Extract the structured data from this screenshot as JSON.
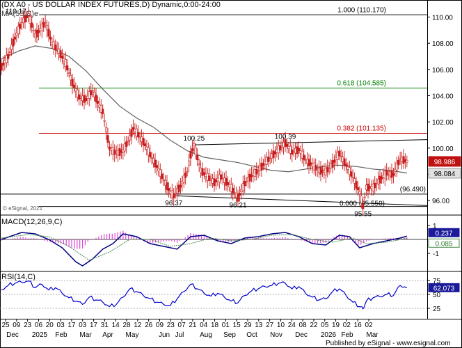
{
  "header": {
    "title": "(DX A0 - US DOLLAR INDEX FUTURES,D) Dynamic,0:00-24:00",
    "ma_label": "MA(55,C)e",
    "watermark": "© eSignal, 2021"
  },
  "credit": "Published by eSignal - www.esignal.com",
  "chart_data": [
    {
      "type": "line",
      "panel": "price",
      "y_ticks": [
        "110.00",
        "108.00",
        "106.00",
        "104.00",
        "102.00",
        "100.00",
        "98.00",
        "96.00"
      ],
      "ylim": [
        95.0,
        111.3
      ],
      "grid": false,
      "colors": {
        "candles": "#c81a1a",
        "ma": "#606060",
        "fib_100": "#000000",
        "fib_618": "#008000",
        "fib_382": "#cc0000",
        "price_tag_last": "#c01010",
        "price_tag_ma": "#e0e0e0"
      },
      "series": [
        {
          "name": "MA(55,C)e",
          "type": "line",
          "values": [
            [
              0,
              106.8
            ],
            [
              5,
              107.4
            ],
            [
              10,
              107.8
            ],
            [
              15,
              107.6
            ],
            [
              20,
              107.0
            ],
            [
              25,
              105.9
            ],
            [
              30,
              104.5
            ],
            [
              35,
              103.2
            ],
            [
              40,
              102.3
            ],
            [
              45,
              101.6
            ],
            [
              50,
              100.6
            ],
            [
              55,
              99.8
            ],
            [
              60,
              99.3
            ],
            [
              65,
              99.1
            ],
            [
              70,
              98.9
            ],
            [
              75,
              98.6
            ],
            [
              80,
              98.3
            ],
            [
              85,
              98.2
            ],
            [
              90,
              98.4
            ],
            [
              95,
              98.6
            ],
            [
              100,
              98.7
            ],
            [
              105,
              98.6
            ],
            [
              110,
              98.4
            ],
            [
              115,
              98.3
            ],
            [
              120,
              98.1
            ]
          ]
        },
        {
          "name": "price",
          "type": "candlestick-approx",
          "values": [
            [
              0,
              106.2
            ],
            [
              2,
              107.0
            ],
            [
              4,
              108.4
            ],
            [
              6,
              109.6
            ],
            [
              8,
              110.17
            ],
            [
              10,
              108.6
            ],
            [
              12,
              109.2
            ],
            [
              13,
              109.6
            ],
            [
              15,
              108.0
            ],
            [
              17,
              107.4
            ],
            [
              19,
              106.5
            ],
            [
              21,
              105.0
            ],
            [
              23,
              103.9
            ],
            [
              25,
              103.7
            ],
            [
              27,
              104.4
            ],
            [
              29,
              103.2
            ],
            [
              30,
              102.8
            ],
            [
              32,
              100.0
            ],
            [
              34,
              99.6
            ],
            [
              36,
              99.8
            ],
            [
              38,
              100.8
            ],
            [
              39,
              101.5
            ],
            [
              40,
              101.2
            ],
            [
              42,
              100.5
            ],
            [
              44,
              99.5
            ],
            [
              46,
              98.6
            ],
            [
              48,
              97.6
            ],
            [
              50,
              96.6
            ],
            [
              51,
              96.37
            ],
            [
              53,
              97.1
            ],
            [
              55,
              98.2
            ],
            [
              56,
              99.5
            ],
            [
              57,
              100.25
            ],
            [
              59,
              98.3
            ],
            [
              61,
              97.8
            ],
            [
              63,
              97.4
            ],
            [
              65,
              97.8
            ],
            [
              67,
              97.3
            ],
            [
              69,
              96.6
            ],
            [
              70,
              96.21
            ],
            [
              72,
              97.3
            ],
            [
              74,
              97.9
            ],
            [
              76,
              98.3
            ],
            [
              78,
              98.9
            ],
            [
              80,
              99.4
            ],
            [
              82,
              99.9
            ],
            [
              84,
              100.39
            ],
            [
              86,
              99.7
            ],
            [
              88,
              99.9
            ],
            [
              90,
              99.1
            ],
            [
              92,
              98.7
            ],
            [
              94,
              98.3
            ],
            [
              96,
              98.2
            ],
            [
              98,
              98.8
            ],
            [
              100,
              99.6
            ],
            [
              102,
              98.7
            ],
            [
              104,
              97.8
            ],
            [
              106,
              96.6
            ],
            [
              107,
              95.55
            ],
            [
              108,
              97.0
            ],
            [
              110,
              97.0
            ],
            [
              112,
              97.6
            ],
            [
              114,
              98.1
            ],
            [
              116,
              98.0
            ],
            [
              118,
              99.2
            ],
            [
              120,
              98.986
            ]
          ]
        }
      ],
      "annotations": [
        {
          "text": "110.17",
          "x": 8,
          "y": 110.17
        },
        {
          "text": "100.25",
          "x": 57,
          "y": 100.25
        },
        {
          "text": "100.39",
          "x": 84,
          "y": 100.39
        },
        {
          "text": "96.37",
          "x": 51,
          "y": 96.37
        },
        {
          "text": "96.21",
          "x": 70,
          "y": 96.21
        },
        {
          "text": "95.55",
          "x": 107,
          "y": 95.55
        }
      ],
      "levels": [
        {
          "label": "1.000 (110.170)",
          "value": 110.17,
          "color": "#000000"
        },
        {
          "label": "0.618 (104.585)",
          "value": 104.585,
          "color": "#008000"
        },
        {
          "label": "0.382 (101.135)",
          "value": 101.135,
          "color": "#cc0000"
        },
        {
          "label": "0.000 (95.550)",
          "value": 95.55,
          "color": "#000000"
        },
        {
          "label": "(96.490)",
          "value": 96.49,
          "color": "#000000"
        }
      ],
      "trendlines": [
        {
          "from": [
            57,
            100.25
          ],
          "to": [
            126,
            100.65
          ],
          "label": "upper channel"
        },
        {
          "from": [
            51,
            96.37
          ],
          "to": [
            126,
            95.62
          ],
          "label": "lower channel"
        }
      ],
      "price_tags": [
        {
          "text": "98.986",
          "value": 98.986,
          "kind": "last"
        },
        {
          "text": "98.084",
          "value": 98.084,
          "kind": "ma"
        }
      ]
    },
    {
      "type": "line",
      "panel": "macd",
      "title": "MACD(12,26,9,C)",
      "y_ticks": [
        "1",
        "-1"
      ],
      "ylim": [
        -2.2,
        1.6
      ],
      "price_tags": [
        {
          "text": "0.237",
          "value": 0.237
        },
        {
          "text": "0.085",
          "value": 0.085
        }
      ],
      "series": [
        {
          "name": "MACD",
          "color": "#000080",
          "values": [
            [
              0,
              0.0
            ],
            [
              6,
              0.5
            ],
            [
              10,
              0.4
            ],
            [
              14,
              0.0
            ],
            [
              18,
              -0.6
            ],
            [
              22,
              -1.6
            ],
            [
              24,
              -1.9
            ],
            [
              27,
              -1.4
            ],
            [
              30,
              -0.7
            ],
            [
              33,
              -0.3
            ],
            [
              36,
              0.4
            ],
            [
              40,
              0.2
            ],
            [
              44,
              -0.3
            ],
            [
              48,
              -0.5
            ],
            [
              52,
              -0.7
            ],
            [
              56,
              0.2
            ],
            [
              60,
              0.3
            ],
            [
              64,
              -0.1
            ],
            [
              68,
              -0.3
            ],
            [
              72,
              0.1
            ],
            [
              76,
              0.2
            ],
            [
              80,
              0.4
            ],
            [
              84,
              0.5
            ],
            [
              88,
              0.2
            ],
            [
              92,
              -0.3
            ],
            [
              96,
              -0.4
            ],
            [
              100,
              0.3
            ],
            [
              103,
              0.2
            ],
            [
              106,
              -0.6
            ],
            [
              110,
              -0.3
            ],
            [
              114,
              -0.1
            ],
            [
              118,
              0.1
            ],
            [
              120,
              0.237
            ]
          ]
        },
        {
          "name": "Signal",
          "color": "#4a8a4a",
          "values": [
            [
              0,
              0.1
            ],
            [
              8,
              0.35
            ],
            [
              14,
              0.2
            ],
            [
              20,
              -0.5
            ],
            [
              26,
              -1.5
            ],
            [
              32,
              -0.9
            ],
            [
              38,
              0.0
            ],
            [
              44,
              0.0
            ],
            [
              50,
              -0.5
            ],
            [
              56,
              -0.3
            ],
            [
              62,
              0.1
            ],
            [
              68,
              -0.1
            ],
            [
              74,
              0.0
            ],
            [
              80,
              0.3
            ],
            [
              86,
              0.35
            ],
            [
              92,
              0.0
            ],
            [
              98,
              -0.2
            ],
            [
              104,
              0.1
            ],
            [
              108,
              -0.3
            ],
            [
              114,
              -0.2
            ],
            [
              120,
              0.085
            ]
          ]
        }
      ]
    },
    {
      "type": "line",
      "panel": "rsi",
      "title": "RSI(14,C)",
      "y_ticks": [
        "75",
        "50",
        "25"
      ],
      "ylim": [
        10,
        90
      ],
      "price_tags": [
        {
          "text": "62.073",
          "value": 62.073
        }
      ],
      "series": [
        {
          "name": "RSI",
          "color": "#0000cc",
          "values": [
            [
              0,
              58
            ],
            [
              2,
              66
            ],
            [
              4,
              70
            ],
            [
              6,
              72
            ],
            [
              8,
              74
            ],
            [
              10,
              62
            ],
            [
              12,
              68
            ],
            [
              14,
              58
            ],
            [
              16,
              62
            ],
            [
              18,
              52
            ],
            [
              20,
              44
            ],
            [
              22,
              38
            ],
            [
              24,
              32
            ],
            [
              26,
              45
            ],
            [
              28,
              40
            ],
            [
              30,
              36
            ],
            [
              32,
              28
            ],
            [
              34,
              32
            ],
            [
              36,
              45
            ],
            [
              38,
              60
            ],
            [
              40,
              55
            ],
            [
              42,
              48
            ],
            [
              44,
              42
            ],
            [
              46,
              36
            ],
            [
              48,
              32
            ],
            [
              50,
              30
            ],
            [
              52,
              42
            ],
            [
              54,
              55
            ],
            [
              56,
              68
            ],
            [
              58,
              60
            ],
            [
              60,
              52
            ],
            [
              62,
              47
            ],
            [
              64,
              52
            ],
            [
              66,
              45
            ],
            [
              68,
              38
            ],
            [
              70,
              35
            ],
            [
              72,
              48
            ],
            [
              74,
              56
            ],
            [
              76,
              60
            ],
            [
              78,
              64
            ],
            [
              80,
              66
            ],
            [
              82,
              70
            ],
            [
              84,
              70
            ],
            [
              86,
              60
            ],
            [
              88,
              64
            ],
            [
              90,
              52
            ],
            [
              92,
              45
            ],
            [
              94,
              40
            ],
            [
              96,
              42
            ],
            [
              98,
              55
            ],
            [
              100,
              60
            ],
            [
              102,
              48
            ],
            [
              104,
              36
            ],
            [
              106,
              28
            ],
            [
              107,
              24
            ],
            [
              108,
              38
            ],
            [
              110,
              44
            ],
            [
              112,
              46
            ],
            [
              114,
              50
            ],
            [
              116,
              48
            ],
            [
              118,
              66
            ],
            [
              120,
              62.073
            ]
          ]
        }
      ],
      "reference_lines": [
        75,
        50,
        25
      ]
    }
  ],
  "x_axis": {
    "day_labels": [
      "25",
      "09",
      "23",
      "06",
      "20",
      "03",
      "17",
      "03",
      "17",
      "31",
      "14",
      "28",
      "12",
      "26",
      "09",
      "23",
      "07",
      "21",
      "04",
      "18",
      "01",
      "15",
      "29",
      "13",
      "27",
      "10",
      "24",
      "08",
      "22",
      "05",
      "19",
      "02",
      "16",
      "02"
    ],
    "month_labels": [
      "Dec",
      "2025",
      "Feb",
      "Mar",
      "Apr",
      "May",
      "Jun",
      "Jul",
      "Aug",
      "Sep",
      "Oct",
      "Nov",
      "Dec",
      "2026",
      "Feb",
      "Mar"
    ]
  }
}
